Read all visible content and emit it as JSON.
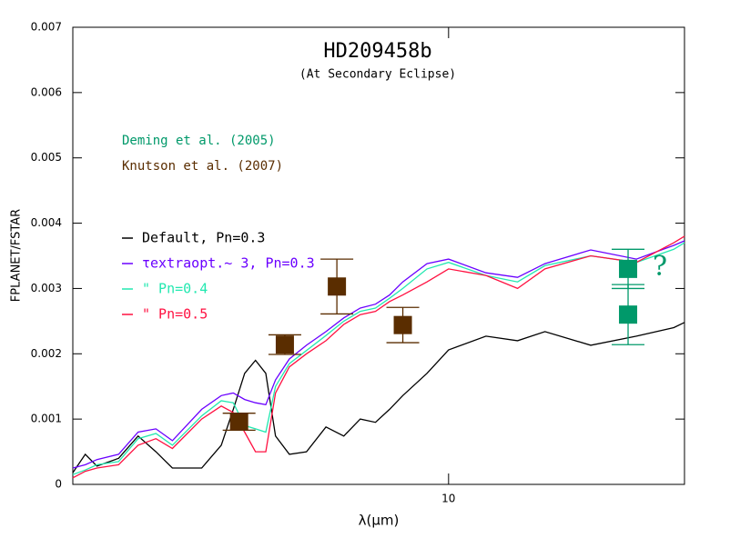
{
  "chart_data": {
    "type": "line",
    "title": "HD209458b",
    "subtitle": "(At Secondary Eclipse)",
    "x_label": "λ(μm)",
    "y_label": "FPLANET/FSTAR",
    "log_x": true,
    "xlim": [
      1.6,
      31.6
    ],
    "xticks": [
      10
    ],
    "ylim": [
      0,
      0.007
    ],
    "yticks": [
      0,
      0.001,
      0.002,
      0.003,
      0.004,
      0.005,
      0.006,
      0.007
    ],
    "x": [
      1.6,
      1.7,
      1.8,
      2.0,
      2.2,
      2.4,
      2.6,
      3.0,
      3.3,
      3.5,
      3.7,
      3.9,
      4.1,
      4.3,
      4.6,
      5.0,
      5.5,
      6.0,
      6.5,
      7.0,
      7.5,
      8.0,
      9.0,
      10,
      12,
      14,
      16,
      20,
      25,
      30,
      31.6
    ],
    "series": [
      {
        "name": "Default, Pn=0.3",
        "color": "#000000",
        "values": [
          0.00018,
          0.00046,
          0.00028,
          0.0004,
          0.00074,
          0.0005,
          0.00025,
          0.00025,
          0.0006,
          0.00115,
          0.0017,
          0.0019,
          0.0017,
          0.00074,
          0.00046,
          0.0005,
          0.00088,
          0.00074,
          0.001,
          0.00095,
          0.00115,
          0.00136,
          0.0017,
          0.00206,
          0.00227,
          0.0022,
          0.00234,
          0.00213,
          0.00227,
          0.0024,
          0.00248
        ]
      },
      {
        "name": "τextraopt.~ 3, Pn=0.3",
        "color": "#6a00ff",
        "values": [
          0.00025,
          0.0003,
          0.00038,
          0.00046,
          0.0008,
          0.00085,
          0.00067,
          0.00115,
          0.00136,
          0.0014,
          0.0013,
          0.00125,
          0.00122,
          0.0016,
          0.00192,
          0.00213,
          0.00234,
          0.00255,
          0.0027,
          0.00276,
          0.0029,
          0.0031,
          0.00338,
          0.00345,
          0.00324,
          0.00317,
          0.00338,
          0.00359,
          0.00345,
          0.00366,
          0.00373
        ]
      },
      {
        "name": "\"        Pn=0.4",
        "color": "#22e8b0",
        "values": [
          0.00015,
          0.00022,
          0.0003,
          0.00035,
          0.0007,
          0.00078,
          0.0006,
          0.00105,
          0.00128,
          0.00125,
          0.0009,
          0.00085,
          0.0008,
          0.0015,
          0.00185,
          0.00205,
          0.00228,
          0.0025,
          0.00265,
          0.0027,
          0.00285,
          0.003,
          0.0033,
          0.0034,
          0.0032,
          0.0031,
          0.00335,
          0.0035,
          0.0034,
          0.0036,
          0.0037
        ]
      },
      {
        "name": "\"        Pn=0.5",
        "color": "#ff1040",
        "values": [
          0.0001,
          0.0002,
          0.00025,
          0.0003,
          0.0006,
          0.0007,
          0.00055,
          0.001,
          0.0012,
          0.0011,
          0.0008,
          0.0005,
          0.0005,
          0.0014,
          0.0018,
          0.002,
          0.0022,
          0.00245,
          0.0026,
          0.00265,
          0.0028,
          0.0029,
          0.0031,
          0.0033,
          0.0032,
          0.003,
          0.0033,
          0.0035,
          0.0034,
          0.0037,
          0.0038
        ]
      }
    ],
    "observations": [
      {
        "name": "Deming et al. (2005)",
        "color": "#00996a",
        "x": [
          24,
          24
        ],
        "values": [
          0.0033,
          0.0026
        ],
        "errors": [
          0.0003,
          0.00046
        ]
      },
      {
        "name": "Knutson et al. (2007)",
        "color": "#5a2d00",
        "x": [
          3.6,
          4.5,
          5.8,
          8.0
        ],
        "values": [
          0.00096,
          0.00214,
          0.00303,
          0.00244
        ],
        "errors": [
          0.00013,
          0.00015,
          0.00042,
          0.00027
        ]
      }
    ],
    "annotation": "?"
  }
}
